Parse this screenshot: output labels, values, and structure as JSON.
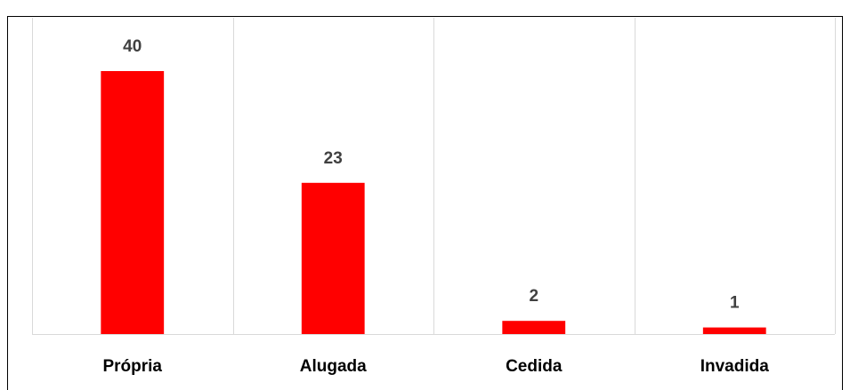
{
  "chart_data": {
    "type": "bar",
    "categories": [
      "Própria",
      "Alugada",
      "Cedida",
      "Invadida"
    ],
    "values": [
      40,
      23,
      2,
      1
    ],
    "color": "#ff0000",
    "ylim": [
      0,
      45
    ],
    "grid": false
  }
}
